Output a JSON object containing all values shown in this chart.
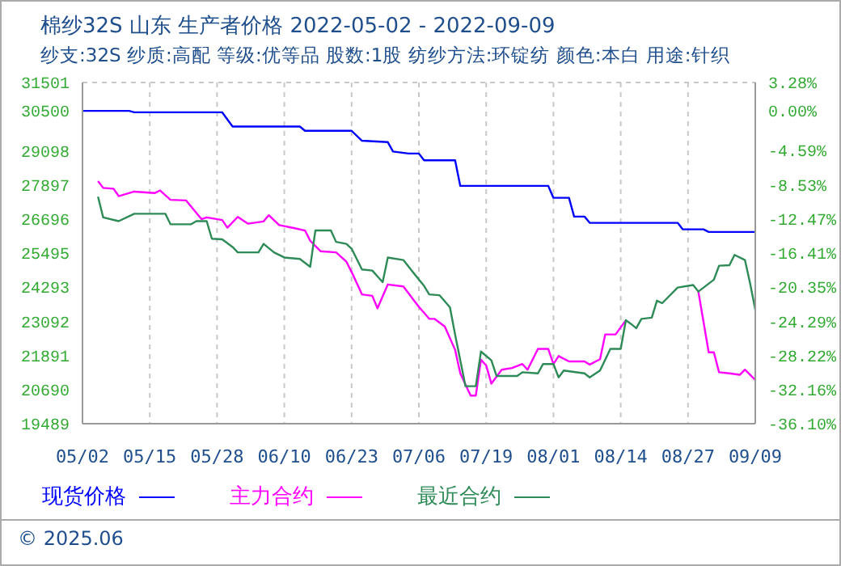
{
  "chart_data": {
    "type": "line",
    "title": "棉纱32S 山东 生产者价格 2022-05-02 - 2022-09-09",
    "subtitle": "纱支:32S 纱质:高配 等级:优等品 股数:1股 纺纱方法:环锭纺 颜色:本白 用途:针织",
    "annotations": [
      "© 2025.06"
    ],
    "xlim": [
      "2022-05-02",
      "2022-09-09"
    ],
    "xticks": [
      {
        "value": "2022-05-02",
        "label": "05/02"
      },
      {
        "value": "2022-05-15",
        "label": "05/15"
      },
      {
        "value": "2022-05-28",
        "label": "05/28"
      },
      {
        "value": "2022-06-10",
        "label": "06/10"
      },
      {
        "value": "2022-06-23",
        "label": "06/23"
      },
      {
        "value": "2022-07-06",
        "label": "07/06"
      },
      {
        "value": "2022-07-19",
        "label": "07/19"
      },
      {
        "value": "2022-08-01",
        "label": "08/01"
      },
      {
        "value": "2022-08-14",
        "label": "08/14"
      },
      {
        "value": "2022-08-27",
        "label": "08/27"
      },
      {
        "value": "2022-09-09",
        "label": "09/09"
      }
    ],
    "ylim": [
      19489,
      31501
    ],
    "yticks": [
      19489,
      20690,
      21891,
      23092,
      24293,
      25495,
      26696,
      27897,
      29098,
      30500,
      31501
    ],
    "y2lim": [
      -36.1,
      3.28
    ],
    "y2ticks": [
      {
        "value": -36.1,
        "label": "-36.10%"
      },
      {
        "value": -32.16,
        "label": "-32.16%"
      },
      {
        "value": -28.22,
        "label": "-28.22%"
      },
      {
        "value": -24.29,
        "label": "-24.29%"
      },
      {
        "value": -20.35,
        "label": "-20.35%"
      },
      {
        "value": -16.41,
        "label": "-16.41%"
      },
      {
        "value": -12.47,
        "label": "-12.47%"
      },
      {
        "value": -8.53,
        "label": "-8.53%"
      },
      {
        "value": -4.59,
        "label": "-4.59%"
      },
      {
        "value": 0,
        "label": "0.00%"
      },
      {
        "value": 3.28,
        "label": "3.28%"
      }
    ],
    "grid": true,
    "legend": "bottom",
    "marker": "none",
    "line_style": "solid",
    "series": [
      {
        "name": "现货价格",
        "color": "#0000ff",
        "x": [
          "2022-05-02",
          "2022-05-11",
          "2022-05-12",
          "2022-05-29",
          "2022-05-31",
          "2022-06-13",
          "2022-06-14",
          "2022-06-23",
          "2022-06-25",
          "2022-06-30",
          "2022-07-01",
          "2022-07-04",
          "2022-07-06",
          "2022-07-07",
          "2022-07-13",
          "2022-07-14",
          "2022-07-31",
          "2022-08-01",
          "2022-08-04",
          "2022-08-05",
          "2022-08-07",
          "2022-08-08",
          "2022-08-25",
          "2022-08-26",
          "2022-08-30",
          "2022-08-31",
          "2022-09-09"
        ],
        "values": [
          30500,
          30500,
          30450,
          30450,
          29950,
          29950,
          29800,
          29800,
          29450,
          29400,
          29070,
          29000,
          29000,
          28760,
          28760,
          27860,
          27860,
          27440,
          27440,
          26780,
          26780,
          26560,
          26560,
          26330,
          26330,
          26240,
          26240
        ]
      },
      {
        "name": "主力合约",
        "color": "#ff00ff",
        "x": [
          "2022-05-05",
          "2022-05-06",
          "2022-05-08",
          "2022-05-09",
          "2022-05-12",
          "2022-05-16",
          "2022-05-17",
          "2022-05-19",
          "2022-05-22",
          "2022-05-25",
          "2022-05-26",
          "2022-05-29",
          "2022-05-30",
          "2022-06-01",
          "2022-06-03",
          "2022-06-06",
          "2022-06-07",
          "2022-06-09",
          "2022-06-12",
          "2022-06-14",
          "2022-06-15",
          "2022-06-17",
          "2022-06-20",
          "2022-06-22",
          "2022-06-23",
          "2022-06-25",
          "2022-06-27",
          "2022-06-28",
          "2022-06-30",
          "2022-07-03",
          "2022-07-06",
          "2022-07-08",
          "2022-07-09",
          "2022-07-11",
          "2022-07-13",
          "2022-07-14",
          "2022-07-16",
          "2022-07-17",
          "2022-07-18",
          "2022-07-19",
          "2022-07-20",
          "2022-07-22",
          "2022-07-24",
          "2022-07-26",
          "2022-07-27",
          "2022-07-29",
          "2022-07-31",
          "2022-08-01",
          "2022-08-02",
          "2022-08-04",
          "2022-08-07",
          "2022-08-08",
          "2022-08-10",
          "2022-08-11",
          "2022-08-13",
          "2022-08-15",
          "2022-08-20",
          "2022-08-29",
          "2022-08-31",
          "2022-09-01",
          "2022-09-02",
          "2022-09-04",
          "2022-09-06",
          "2022-09-07",
          "2022-09-09"
        ],
        "values": [
          28030,
          27790,
          27760,
          27500,
          27660,
          27610,
          27700,
          27370,
          27350,
          26690,
          26750,
          26660,
          26390,
          26770,
          26530,
          26610,
          26830,
          26480,
          26370,
          26290,
          25930,
          25560,
          25520,
          25190,
          24830,
          24040,
          23990,
          23550,
          24390,
          24320,
          23600,
          23180,
          23180,
          22910,
          22090,
          21260,
          20480,
          20480,
          21740,
          21540,
          20900,
          21390,
          21450,
          21590,
          21390,
          22120,
          22120,
          21590,
          21870,
          21680,
          21680,
          21570,
          21760,
          22630,
          22630,
          23130,
          null,
          24140,
          22000,
          22000,
          21300,
          21260,
          21210,
          21390,
          21030
        ]
      },
      {
        "name": "最近合约",
        "color": "#2e8b57",
        "x": [
          "2022-05-05",
          "2022-05-06",
          "2022-05-09",
          "2022-05-12",
          "2022-05-18",
          "2022-05-19",
          "2022-05-23",
          "2022-05-24",
          "2022-05-26",
          "2022-05-27",
          "2022-05-29",
          "2022-05-31",
          "2022-06-01",
          "2022-06-05",
          "2022-06-06",
          "2022-06-08",
          "2022-06-10",
          "2022-06-13",
          "2022-06-15",
          "2022-06-16",
          "2022-06-19",
          "2022-06-20",
          "2022-06-22",
          "2022-06-23",
          "2022-06-25",
          "2022-06-27",
          "2022-06-29",
          "2022-06-30",
          "2022-07-03",
          "2022-07-06",
          "2022-07-07",
          "2022-07-08",
          "2022-07-10",
          "2022-07-12",
          "2022-07-13",
          "2022-07-15",
          "2022-07-17",
          "2022-07-18",
          "2022-07-20",
          "2022-07-21",
          "2022-07-25",
          "2022-07-26",
          "2022-07-29",
          "2022-07-30",
          "2022-08-01",
          "2022-08-02",
          "2022-08-03",
          "2022-08-07",
          "2022-08-08",
          "2022-08-10",
          "2022-08-12",
          "2022-08-14",
          "2022-08-15",
          "2022-08-16",
          "2022-08-17",
          "2022-08-18",
          "2022-08-20",
          "2022-08-21",
          "2022-08-22",
          "2022-08-25",
          "2022-08-28",
          "2022-08-29",
          "2022-09-01",
          "2022-09-02",
          "2022-09-04",
          "2022-09-05",
          "2022-09-07",
          "2022-09-08",
          "2022-09-09"
        ],
        "values": [
          27480,
          26750,
          26620,
          26880,
          26880,
          26510,
          26510,
          26620,
          26620,
          26000,
          25980,
          25710,
          25520,
          25520,
          25820,
          25520,
          25340,
          25290,
          25010,
          26290,
          26290,
          25890,
          25820,
          25650,
          24920,
          24880,
          24470,
          25340,
          25250,
          24560,
          24340,
          24040,
          24010,
          23590,
          22630,
          20810,
          20810,
          22030,
          21720,
          21170,
          21170,
          21300,
          21260,
          21590,
          21590,
          21120,
          21360,
          21260,
          21120,
          21360,
          22120,
          22120,
          23130,
          23000,
          22850,
          23180,
          23220,
          23820,
          23730,
          24280,
          24370,
          24140,
          24560,
          25050,
          25070,
          25430,
          25250,
          24430,
          23500
        ]
      }
    ]
  }
}
